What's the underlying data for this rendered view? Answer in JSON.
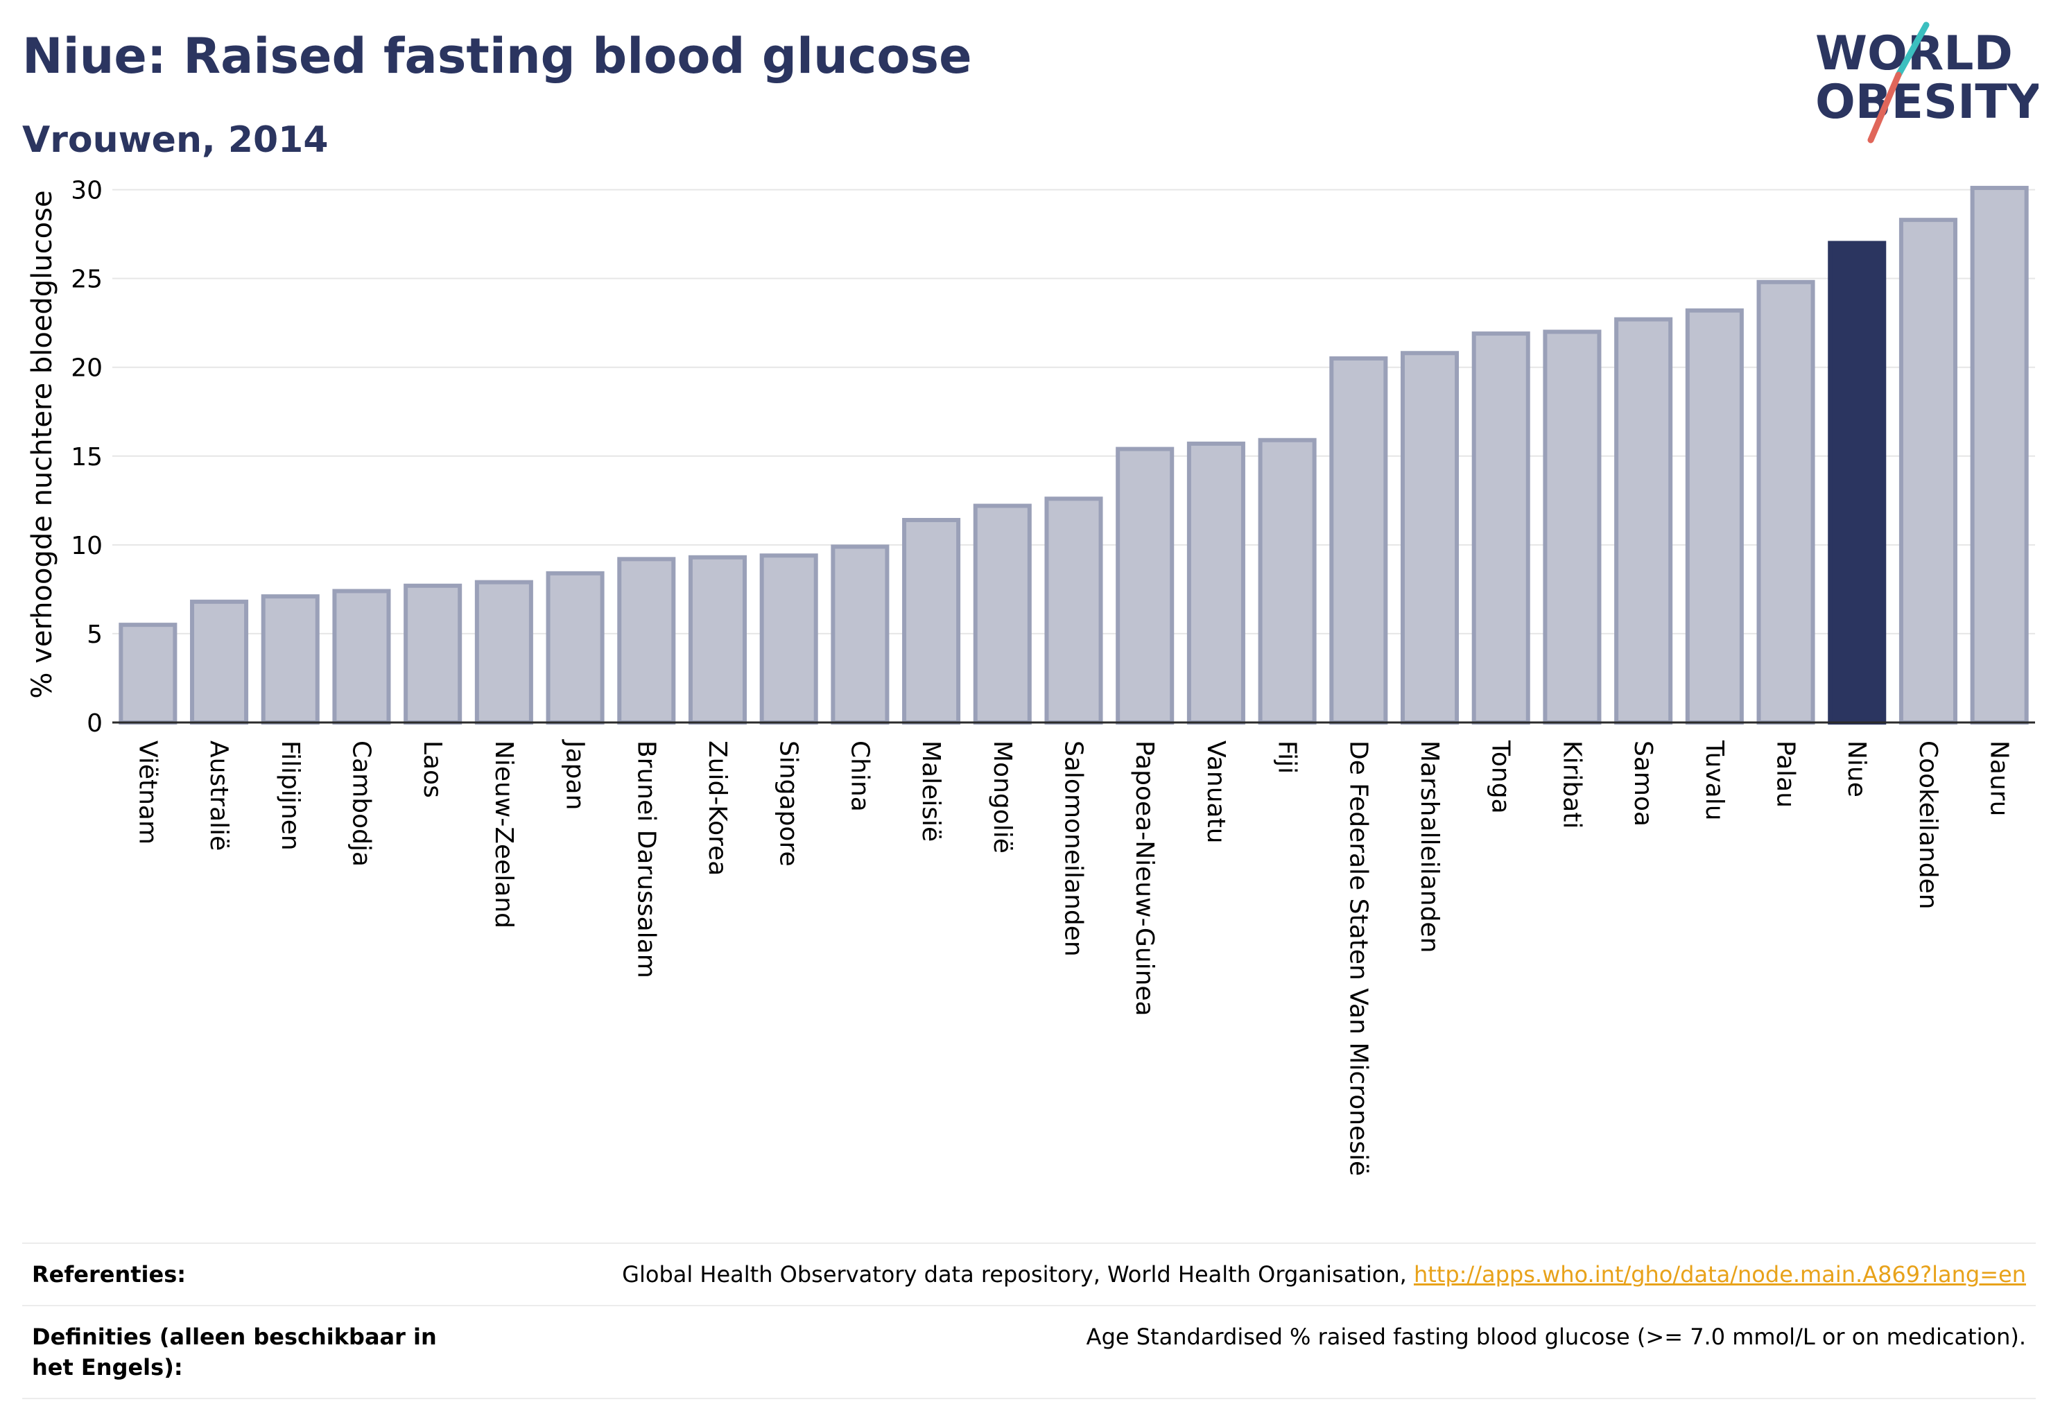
{
  "header": {
    "title": "Niue: Raised fasting blood glucose",
    "subtitle": "Vrouwen, 2014"
  },
  "logo": {
    "line1": "WORLD",
    "line2": "OBESITY",
    "colors": {
      "text": "#2b3560",
      "slash_teal": "#3bbfbf",
      "slash_red": "#e0665a"
    }
  },
  "chart_data": {
    "type": "bar",
    "ylabel": "% verhoogde nuchtere bloedglucose",
    "xlabel": "",
    "ylim": [
      0,
      31
    ],
    "yticks": [
      0,
      5,
      10,
      15,
      20,
      25,
      30
    ],
    "grid": true,
    "categories": [
      "Viëtnam",
      "Australië",
      "Filipijnen",
      "Cambodja",
      "Laos",
      "Nieuw-Zeeland",
      "Japan",
      "Brunei Darussalam",
      "Zuid-Korea",
      "Singapore",
      "China",
      "Maleisië",
      "Mongolië",
      "Salomoneilanden",
      "Papoea-Nieuw-Guinea",
      "Vanuatu",
      "Fiji",
      "De Federale Staten Van Micronesië",
      "Marshalleilanden",
      "Tonga",
      "Kiribati",
      "Samoa",
      "Tuvalu",
      "Palau",
      "Niue",
      "Cookeilanden",
      "Nauru"
    ],
    "values": [
      5.5,
      6.8,
      7.1,
      7.4,
      7.7,
      7.9,
      8.4,
      9.2,
      9.3,
      9.4,
      9.9,
      11.4,
      12.2,
      12.6,
      15.4,
      15.7,
      15.9,
      20.5,
      20.8,
      21.9,
      22.0,
      22.7,
      23.2,
      24.8,
      27.0,
      28.3,
      30.1
    ],
    "highlight": "Niue",
    "colors": {
      "bar": "#bfc2d0",
      "bar_edge": "#9aa0b8",
      "highlight": "#2b3560"
    }
  },
  "references": {
    "label": "Referenties:",
    "text": "Global Health Observatory data repository, World Health Organisation, ",
    "link": "http://apps.who.int/gho/data/node.main.A869?lang=en"
  },
  "definitions": {
    "label": "Definities (alleen beschikbaar in het Engels):",
    "text": "Age Standardised % raised fasting blood glucose (>= 7.0 mmol/L or on medication)."
  }
}
